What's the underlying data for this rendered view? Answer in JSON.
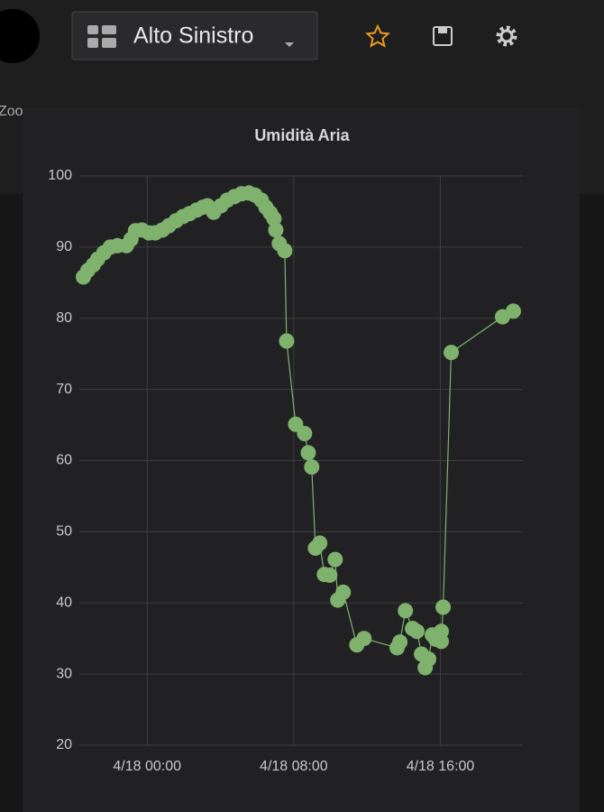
{
  "header": {
    "title": "Alto Sinistro",
    "toolbar_text": "Zoo"
  },
  "chart_data": {
    "type": "line",
    "title": "Umidità Aria",
    "color": "#7eb26d",
    "points": true,
    "grid": true,
    "x": [
      -3.48,
      -3.24,
      -2.94,
      -2.7,
      -2.36,
      -2.01,
      -1.62,
      -1.13,
      -0.88,
      -0.64,
      -0.29,
      0.1,
      0.44,
      0.83,
      1.18,
      1.57,
      1.96,
      2.31,
      2.7,
      3.04,
      3.29,
      3.63,
      4.02,
      4.37,
      4.76,
      5.15,
      5.55,
      5.89,
      6.23,
      6.48,
      6.72,
      6.92,
      7.02,
      7.21,
      7.51,
      7.61,
      8.1,
      8.59,
      8.79,
      8.98,
      9.18,
      9.42,
      9.67,
      9.96,
      10.26,
      10.4,
      10.7,
      11.44,
      11.83,
      13.64,
      13.79,
      14.09,
      14.48,
      14.72,
      14.97,
      15.17,
      15.36,
      15.56,
      15.75,
      16.05,
      16.05,
      16.15,
      16.59,
      19.39,
      19.98
    ],
    "values": [
      85.8,
      86.7,
      87.5,
      88.3,
      89.2,
      90.0,
      90.2,
      90.2,
      91.1,
      92.3,
      92.4,
      92.0,
      92.0,
      92.4,
      93.0,
      93.7,
      94.3,
      94.7,
      95.2,
      95.6,
      95.8,
      94.9,
      95.8,
      96.6,
      97.1,
      97.5,
      97.6,
      97.3,
      96.6,
      95.6,
      94.8,
      94.0,
      92.4,
      90.5,
      89.5,
      76.8,
      65.1,
      63.8,
      61.1,
      59.1,
      47.7,
      48.4,
      44.0,
      43.9,
      46.1,
      40.4,
      41.5,
      34.1,
      35.0,
      33.7,
      34.5,
      38.9,
      36.4,
      36.0,
      32.8,
      30.9,
      32.1,
      35.5,
      34.9,
      36.0,
      34.6,
      39.4,
      75.2,
      80.2,
      81.0
    ],
    "xlim": [
      -3.7,
      20.5
    ],
    "xticks": [
      {
        "value": 0,
        "label": "4/18 00:00"
      },
      {
        "value": 8,
        "label": "4/18 08:00"
      },
      {
        "value": 16,
        "label": "4/18 16:00"
      }
    ],
    "ylim": [
      20,
      100
    ],
    "yticks": [
      20,
      30,
      40,
      50,
      60,
      70,
      80,
      90,
      100
    ]
  }
}
